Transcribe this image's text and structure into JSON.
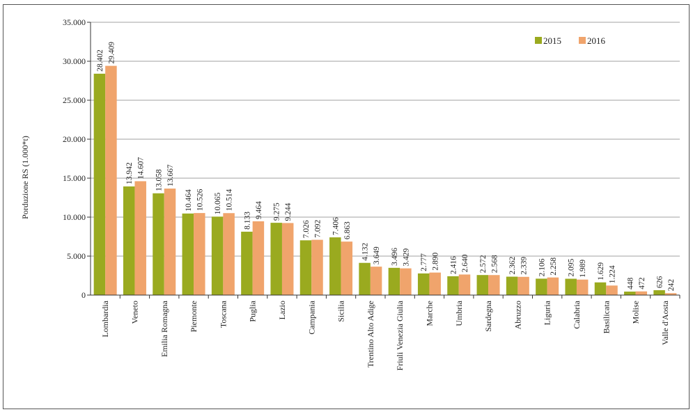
{
  "chart_data": {
    "type": "bar",
    "title": "",
    "xlabel": "",
    "ylabel": "Porduzione RS (1.000*t)",
    "ylim": [
      0,
      35000
    ],
    "yticks": [
      "0",
      "5.000",
      "10.000",
      "15.000",
      "20.000",
      "25.000",
      "30.000",
      "35.000"
    ],
    "grid": true,
    "legend_position": "top-right",
    "categories": [
      "Lombardia",
      "Veneto",
      "Emilia Romagna",
      "Piemonte",
      "Toscana",
      "Puglia",
      "Lazio",
      "Campania",
      "Sicilia",
      "Trentino Alto Adige",
      "Friuli Venezia Giulia",
      "Marche",
      "Umbria",
      "Sardegna",
      "Abruzzo",
      "Liguria",
      "Calabria",
      "Basilicata",
      "Molise",
      "Valle d'Aosta"
    ],
    "series": [
      {
        "name": "2015",
        "color": "#9aaa1f",
        "values": [
          28402,
          13942,
          13058,
          10464,
          10065,
          8133,
          9275,
          7026,
          7406,
          4132,
          3496,
          2777,
          2416,
          2572,
          2362,
          2106,
          2095,
          1629,
          448,
          626
        ],
        "labels": [
          "28.402",
          "13.942",
          "13.058",
          "10.464",
          "10.065",
          "8.133",
          "9.275",
          "7.026",
          "7.406",
          "4.132",
          "3.496",
          "2.777",
          "2.416",
          "2.572",
          "2.362",
          "2.106",
          "2.095",
          "1.629",
          "448",
          "626"
        ]
      },
      {
        "name": "2016",
        "color": "#f0a46c",
        "values": [
          29409,
          14607,
          13667,
          10526,
          10514,
          9464,
          9244,
          7092,
          6863,
          3649,
          3429,
          2890,
          2640,
          2568,
          2339,
          2258,
          1989,
          1224,
          472,
          242
        ],
        "labels": [
          "29.409",
          "14.607",
          "13.667",
          "10.526",
          "10.514",
          "9.464",
          "9.244",
          "7.092",
          "6.863",
          "3.649",
          "3.429",
          "2.890",
          "2.640",
          "2.568",
          "2.339",
          "2.258",
          "1.989",
          "1.224",
          "472",
          "242"
        ]
      }
    ]
  }
}
